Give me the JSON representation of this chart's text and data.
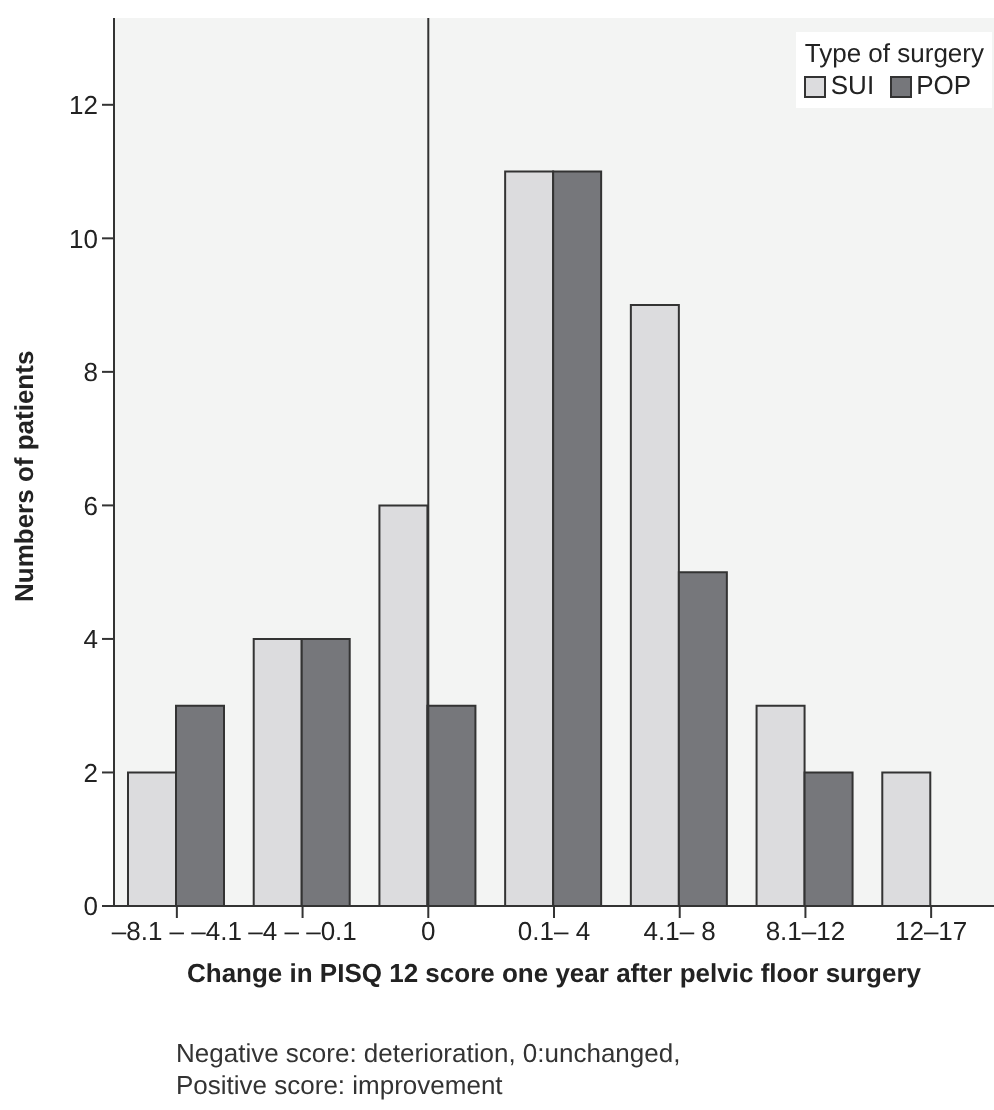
{
  "chart_data": {
    "type": "bar",
    "categories": [
      "–8.1 – –4.1",
      "–4 – –0.1",
      "0",
      "0.1– 4",
      "4.1– 8",
      "8.1–12",
      "12–17"
    ],
    "series": [
      {
        "name": "SUI",
        "color": "#dcdcde",
        "values": [
          2,
          4,
          6,
          11,
          9,
          3,
          2
        ]
      },
      {
        "name": "POP",
        "color": "#76777b",
        "values": [
          3,
          4,
          3,
          11,
          5,
          2,
          null
        ]
      }
    ],
    "ylim": [
      0,
      13.3
    ],
    "yticks": [
      0,
      2,
      4,
      6,
      8,
      10,
      12
    ],
    "xlabel": "Change in PISQ 12 score one year after pelvic floor surgery",
    "ylabel": "Numbers of patients",
    "legend_title": "Type of surgery",
    "legend": "top right",
    "ref_lines": [
      {
        "axis": "x",
        "value": "0",
        "color": "#333333"
      }
    ],
    "annotations": [
      "Negative score: deterioration, 0:unchanged,",
      "Positive score: improvement"
    ]
  }
}
